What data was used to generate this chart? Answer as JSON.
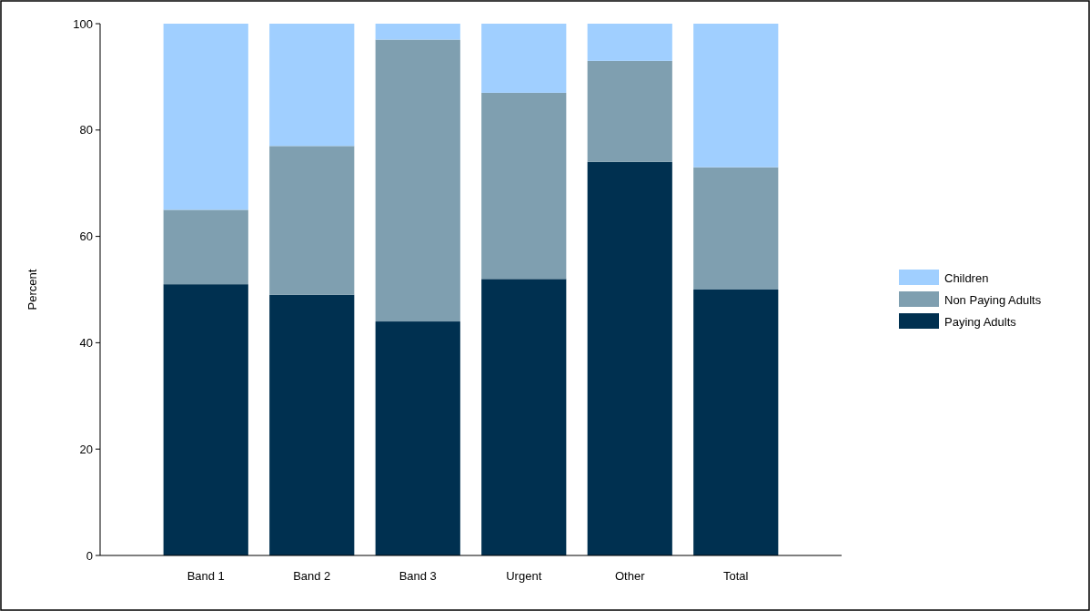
{
  "chart_data": {
    "type": "bar",
    "stacked": true,
    "ylabel": "Percent",
    "categories": [
      "Band 1",
      "Band 2",
      "Band 3",
      "Urgent",
      "Other",
      "Total"
    ],
    "series": [
      {
        "name": "Paying Adults",
        "color": "#003050",
        "values": [
          51,
          49,
          44,
          52,
          74,
          50
        ]
      },
      {
        "name": "Non Paying Adults",
        "color": "#7f9fb0",
        "values": [
          14,
          28,
          53,
          35,
          19,
          23
        ]
      },
      {
        "name": "Children",
        "color": "#a0cfff",
        "values": [
          35,
          23,
          3,
          13,
          7,
          27
        ]
      }
    ],
    "ylim": [
      0,
      100
    ],
    "yticks": [
      0,
      20,
      40,
      60,
      80,
      100
    ],
    "legend": "right"
  }
}
